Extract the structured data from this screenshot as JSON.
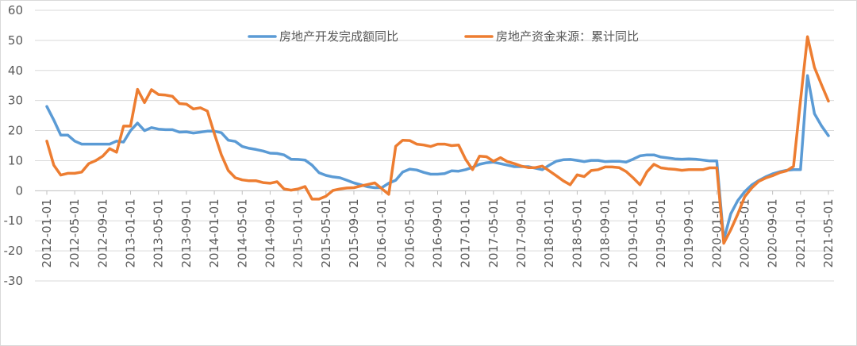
{
  "chart_data": {
    "type": "line",
    "title": "",
    "xlabel": "",
    "ylabel": "",
    "ylim": [
      -30,
      60
    ],
    "yticks": [
      -30,
      -20,
      -10,
      0,
      10,
      20,
      30,
      40,
      50,
      60
    ],
    "grid": "horizontal",
    "legend_placement": "top-center",
    "x_tick_labels": [
      "2012-01-01",
      "2012-05-01",
      "2012-09-01",
      "2013-01-01",
      "2013-05-01",
      "2013-09-01",
      "2014-01-01",
      "2014-05-01",
      "2014-09-01",
      "2015-01-01",
      "2015-05-01",
      "2015-09-01",
      "2016-01-01",
      "2016-05-01",
      "2016-09-01",
      "2017-01-01",
      "2017-05-01",
      "2017-09-01",
      "2018-01-01",
      "2018-05-01",
      "2018-09-01",
      "2019-01-01",
      "2019-05-01",
      "2019-09-01",
      "2020-01-01",
      "2020-05-01",
      "2020-09-01",
      "2021-01-01",
      "2021-05-01"
    ],
    "x_start": "2012-01-01",
    "x_end": "2021-05-01",
    "series": [
      {
        "name": "房地产开发完成额同比",
        "color": "#5b9bd5",
        "points": [
          [
            "2012-01-01",
            28
          ],
          [
            "2012-02-01",
            23.5
          ],
          [
            "2012-03-01",
            18.5
          ],
          [
            "2012-04-01",
            18.5
          ],
          [
            "2012-05-01",
            16.5
          ],
          [
            "2012-06-01",
            15.5
          ],
          [
            "2012-07-01",
            15.5
          ],
          [
            "2012-08-01",
            15.5
          ],
          [
            "2012-09-01",
            15.5
          ],
          [
            "2012-10-01",
            15.5
          ],
          [
            "2012-11-01",
            16.5
          ],
          [
            "2012-12-01",
            16.2
          ],
          [
            "2013-01-01",
            20
          ],
          [
            "2013-02-01",
            22.5
          ],
          [
            "2013-03-01",
            20
          ],
          [
            "2013-04-01",
            21
          ],
          [
            "2013-05-01",
            20.5
          ],
          [
            "2013-06-01",
            20.3
          ],
          [
            "2013-07-01",
            20.3
          ],
          [
            "2013-08-01",
            19.5
          ],
          [
            "2013-09-01",
            19.6
          ],
          [
            "2013-10-01",
            19.2
          ],
          [
            "2013-11-01",
            19.5
          ],
          [
            "2013-12-01",
            19.8
          ],
          [
            "2014-01-01",
            19.8
          ],
          [
            "2014-02-01",
            19.3
          ],
          [
            "2014-03-01",
            16.8
          ],
          [
            "2014-04-01",
            16.4
          ],
          [
            "2014-05-01",
            14.7
          ],
          [
            "2014-06-01",
            14.1
          ],
          [
            "2014-07-01",
            13.7
          ],
          [
            "2014-08-01",
            13.2
          ],
          [
            "2014-09-01",
            12.5
          ],
          [
            "2014-10-01",
            12.4
          ],
          [
            "2014-11-01",
            11.9
          ],
          [
            "2014-12-01",
            10.5
          ],
          [
            "2015-01-01",
            10.4
          ],
          [
            "2015-02-01",
            10.2
          ],
          [
            "2015-03-01",
            8.5
          ],
          [
            "2015-04-01",
            6
          ],
          [
            "2015-05-01",
            5.1
          ],
          [
            "2015-06-01",
            4.6
          ],
          [
            "2015-07-01",
            4.3
          ],
          [
            "2015-08-01",
            3.5
          ],
          [
            "2015-09-01",
            2.6
          ],
          [
            "2015-10-01",
            2
          ],
          [
            "2015-11-01",
            1.3
          ],
          [
            "2015-12-01",
            1
          ],
          [
            "2016-01-01",
            1
          ],
          [
            "2016-02-01",
            2.5
          ],
          [
            "2016-03-01",
            3.5
          ],
          [
            "2016-04-01",
            6.2
          ],
          [
            "2016-05-01",
            7.2
          ],
          [
            "2016-06-01",
            6.9
          ],
          [
            "2016-07-01",
            6.1
          ],
          [
            "2016-08-01",
            5.5
          ],
          [
            "2016-09-01",
            5.5
          ],
          [
            "2016-10-01",
            5.7
          ],
          [
            "2016-11-01",
            6.6
          ],
          [
            "2016-12-01",
            6.5
          ],
          [
            "2017-01-01",
            7
          ],
          [
            "2017-02-01",
            7.8
          ],
          [
            "2017-03-01",
            8.8
          ],
          [
            "2017-04-01",
            9.3
          ],
          [
            "2017-05-01",
            9.5
          ],
          [
            "2017-06-01",
            9
          ],
          [
            "2017-07-01",
            8.5
          ],
          [
            "2017-08-01",
            8
          ],
          [
            "2017-09-01",
            8
          ],
          [
            "2017-10-01",
            8
          ],
          [
            "2017-11-01",
            7.5
          ],
          [
            "2017-12-01",
            7
          ],
          [
            "2018-01-01",
            8.5
          ],
          [
            "2018-02-01",
            9.8
          ],
          [
            "2018-03-01",
            10.3
          ],
          [
            "2018-04-01",
            10.4
          ],
          [
            "2018-05-01",
            10.1
          ],
          [
            "2018-06-01",
            9.7
          ],
          [
            "2018-07-01",
            10.1
          ],
          [
            "2018-08-01",
            10.1
          ],
          [
            "2018-09-01",
            9.7
          ],
          [
            "2018-10-01",
            9.8
          ],
          [
            "2018-11-01",
            9.8
          ],
          [
            "2018-12-01",
            9.5
          ],
          [
            "2019-01-01",
            10.5
          ],
          [
            "2019-02-01",
            11.6
          ],
          [
            "2019-03-01",
            11.9
          ],
          [
            "2019-04-01",
            11.9
          ],
          [
            "2019-05-01",
            11.2
          ],
          [
            "2019-06-01",
            10.9
          ],
          [
            "2019-07-01",
            10.6
          ],
          [
            "2019-08-01",
            10.5
          ],
          [
            "2019-09-01",
            10.6
          ],
          [
            "2019-10-01",
            10.5
          ],
          [
            "2019-11-01",
            10.2
          ],
          [
            "2019-12-01",
            9.9
          ],
          [
            "2020-01-01",
            9.9
          ],
          [
            "2020-02-01",
            -16.3
          ],
          [
            "2020-03-01",
            -7.7
          ],
          [
            "2020-04-01",
            -3.3
          ],
          [
            "2020-05-01",
            -0.3
          ],
          [
            "2020-06-01",
            1.9
          ],
          [
            "2020-07-01",
            3.4
          ],
          [
            "2020-08-01",
            4.6
          ],
          [
            "2020-09-01",
            5.6
          ],
          [
            "2020-10-01",
            6.3
          ],
          [
            "2020-11-01",
            6.8
          ],
          [
            "2020-12-01",
            7
          ],
          [
            "2021-01-01",
            7
          ],
          [
            "2021-02-01",
            38.3
          ],
          [
            "2021-03-01",
            25.6
          ],
          [
            "2021-04-01",
            21.6
          ],
          [
            "2021-05-01",
            18.3
          ]
        ]
      },
      {
        "name": "房地产资金来源：累计同比",
        "color": "#ed7d31",
        "points": [
          [
            "2012-01-01",
            16.5
          ],
          [
            "2012-02-01",
            8.5
          ],
          [
            "2012-03-01",
            5.2
          ],
          [
            "2012-04-01",
            5.8
          ],
          [
            "2012-05-01",
            5.8
          ],
          [
            "2012-06-01",
            6.2
          ],
          [
            "2012-07-01",
            9
          ],
          [
            "2012-08-01",
            10
          ],
          [
            "2012-09-01",
            11.5
          ],
          [
            "2012-10-01",
            14
          ],
          [
            "2012-11-01",
            12.8
          ],
          [
            "2012-12-01",
            21.5
          ],
          [
            "2013-01-01",
            21.5
          ],
          [
            "2013-02-01",
            33.7
          ],
          [
            "2013-03-01",
            29.3
          ],
          [
            "2013-04-01",
            33.6
          ],
          [
            "2013-05-01",
            32
          ],
          [
            "2013-06-01",
            31.8
          ],
          [
            "2013-07-01",
            31.4
          ],
          [
            "2013-08-01",
            29
          ],
          [
            "2013-09-01",
            28.8
          ],
          [
            "2013-10-01",
            27.2
          ],
          [
            "2013-11-01",
            27.6
          ],
          [
            "2013-12-01",
            26.5
          ],
          [
            "2014-01-01",
            19
          ],
          [
            "2014-02-01",
            12
          ],
          [
            "2014-03-01",
            6.7
          ],
          [
            "2014-04-01",
            4.3
          ],
          [
            "2014-05-01",
            3.6
          ],
          [
            "2014-06-01",
            3.3
          ],
          [
            "2014-07-01",
            3.3
          ],
          [
            "2014-08-01",
            2.7
          ],
          [
            "2014-09-01",
            2.5
          ],
          [
            "2014-10-01",
            3
          ],
          [
            "2014-11-01",
            0.6
          ],
          [
            "2014-12-01",
            0.2
          ],
          [
            "2015-01-01",
            0.6
          ],
          [
            "2015-02-01",
            1.4
          ],
          [
            "2015-03-01",
            -2.8
          ],
          [
            "2015-04-01",
            -2.8
          ],
          [
            "2015-05-01",
            -1.8
          ],
          [
            "2015-06-01",
            0.1
          ],
          [
            "2015-07-01",
            0.6
          ],
          [
            "2015-08-01",
            0.9
          ],
          [
            "2015-09-01",
            1
          ],
          [
            "2015-10-01",
            1.6
          ],
          [
            "2015-11-01",
            2.1
          ],
          [
            "2015-12-01",
            2.6
          ],
          [
            "2016-01-01",
            0.7
          ],
          [
            "2016-02-01",
            -1.2
          ],
          [
            "2016-03-01",
            14.8
          ],
          [
            "2016-04-01",
            16.8
          ],
          [
            "2016-05-01",
            16.7
          ],
          [
            "2016-06-01",
            15.5
          ],
          [
            "2016-07-01",
            15.2
          ],
          [
            "2016-08-01",
            14.7
          ],
          [
            "2016-09-01",
            15.5
          ],
          [
            "2016-10-01",
            15.5
          ],
          [
            "2016-11-01",
            15
          ],
          [
            "2016-12-01",
            15.2
          ],
          [
            "2017-01-01",
            10.5
          ],
          [
            "2017-02-01",
            7
          ],
          [
            "2017-03-01",
            11.5
          ],
          [
            "2017-04-01",
            11.3
          ],
          [
            "2017-05-01",
            9.8
          ],
          [
            "2017-06-01",
            11
          ],
          [
            "2017-07-01",
            9.7
          ],
          [
            "2017-08-01",
            9
          ],
          [
            "2017-09-01",
            8.2
          ],
          [
            "2017-10-01",
            7.7
          ],
          [
            "2017-11-01",
            7.7
          ],
          [
            "2017-12-01",
            8.2
          ],
          [
            "2018-01-01",
            6.6
          ],
          [
            "2018-02-01",
            5
          ],
          [
            "2018-03-01",
            3.3
          ],
          [
            "2018-04-01",
            2
          ],
          [
            "2018-05-01",
            5.3
          ],
          [
            "2018-06-01",
            4.7
          ],
          [
            "2018-07-01",
            6.7
          ],
          [
            "2018-08-01",
            7
          ],
          [
            "2018-09-01",
            7.9
          ],
          [
            "2018-10-01",
            7.9
          ],
          [
            "2018-11-01",
            7.7
          ],
          [
            "2018-12-01",
            6.4
          ],
          [
            "2019-01-01",
            4.3
          ],
          [
            "2019-02-01",
            2
          ],
          [
            "2019-03-01",
            6.3
          ],
          [
            "2019-04-01",
            8.8
          ],
          [
            "2019-05-01",
            7.6
          ],
          [
            "2019-06-01",
            7.3
          ],
          [
            "2019-07-01",
            7.1
          ],
          [
            "2019-08-01",
            6.8
          ],
          [
            "2019-09-01",
            7
          ],
          [
            "2019-10-01",
            7
          ],
          [
            "2019-11-01",
            7
          ],
          [
            "2019-12-01",
            7.6
          ],
          [
            "2020-01-01",
            7.6
          ],
          [
            "2020-02-01",
            -17.5
          ],
          [
            "2020-03-01",
            -13
          ],
          [
            "2020-04-01",
            -7.8
          ],
          [
            "2020-05-01",
            -2
          ],
          [
            "2020-06-01",
            0.9
          ],
          [
            "2020-07-01",
            3.1
          ],
          [
            "2020-08-01",
            4.2
          ],
          [
            "2020-09-01",
            5
          ],
          [
            "2020-10-01",
            6
          ],
          [
            "2020-11-01",
            6.6
          ],
          [
            "2020-12-01",
            8.1
          ],
          [
            "2021-01-01",
            30
          ],
          [
            "2021-02-01",
            51.2
          ],
          [
            "2021-03-01",
            41
          ],
          [
            "2021-04-01",
            35.3
          ],
          [
            "2021-05-01",
            29.8
          ]
        ]
      }
    ]
  }
}
